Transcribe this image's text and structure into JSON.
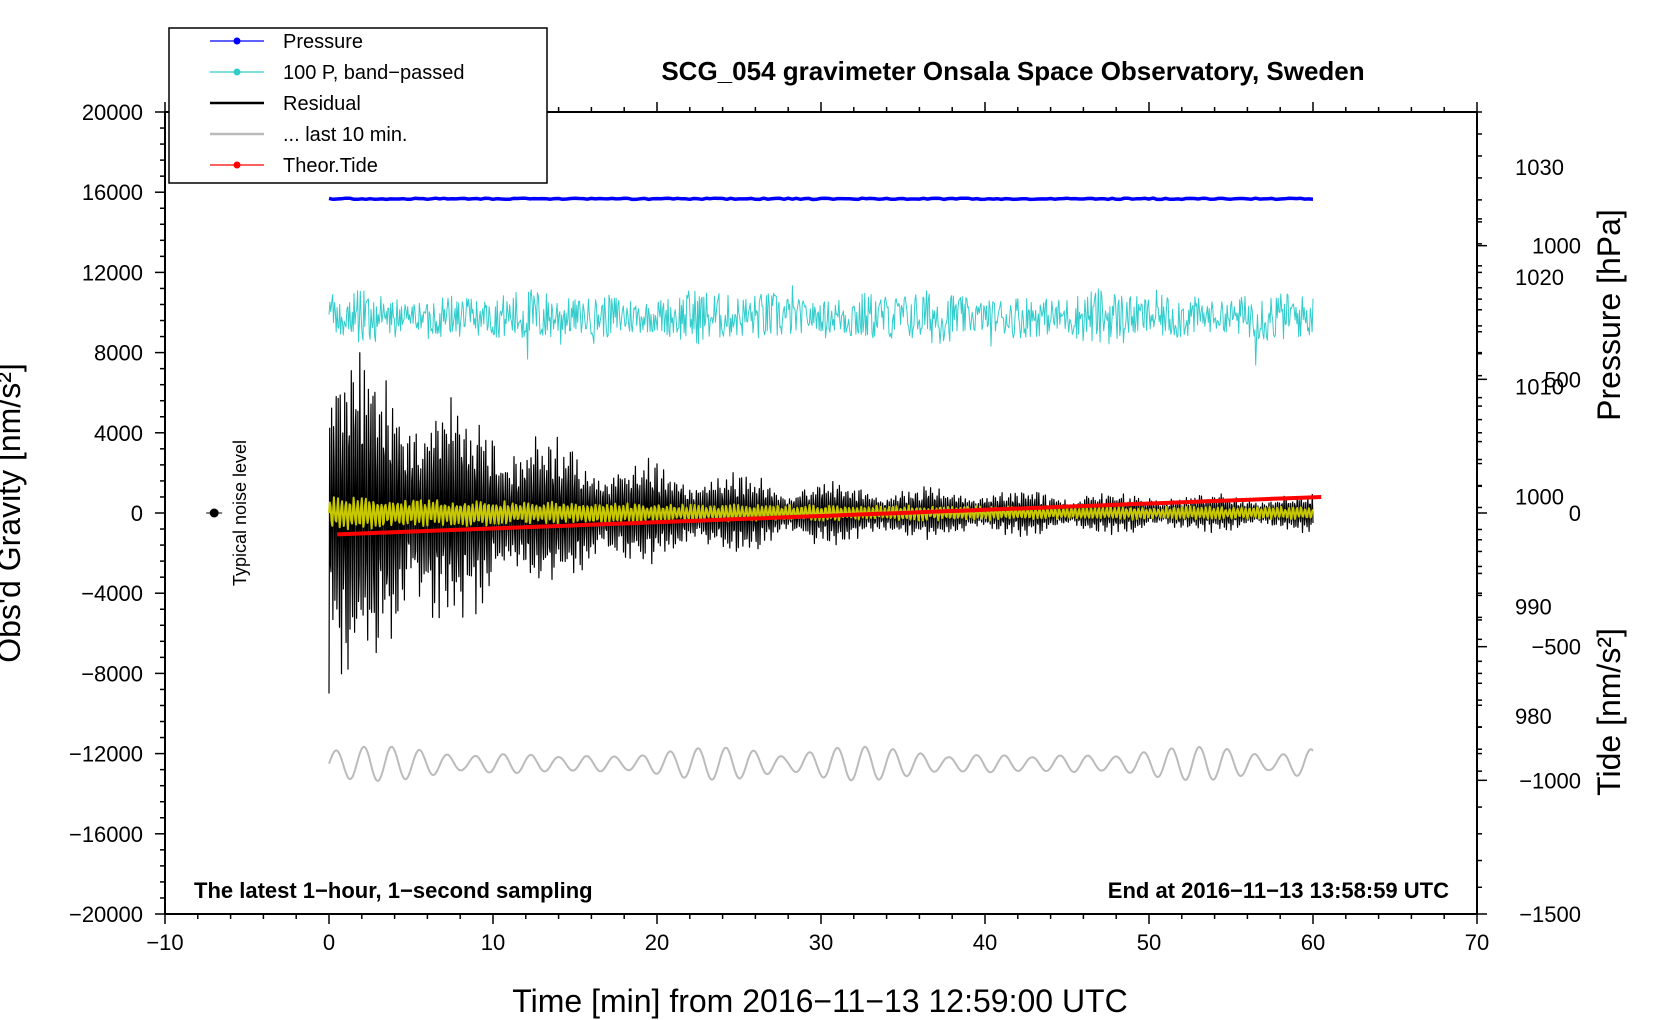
{
  "chart_data": {
    "type": "line",
    "title": "SCG_054 gravimeter Onsala Space Observatory, Sweden",
    "xlabel": "Time [min] from 2016−11−13 12:59:00 UTC",
    "ylabel": "Obs'd Gravity [nm/s²]",
    "ylabel_pressure": "Pressure [hPa]",
    "ylabel_tide": "Tide [nm/s²]",
    "xlim": [
      -10,
      70
    ],
    "ylim": [
      -20000,
      20000
    ],
    "pressure_lim": [
      962,
      1035
    ],
    "tide_lim": [
      -1500,
      1500
    ],
    "x_ticks": [
      "−10",
      "0",
      "10",
      "20",
      "30",
      "40",
      "50",
      "60",
      "70"
    ],
    "y_ticks": [
      "−20000",
      "−16000",
      "−12000",
      "−8000",
      "−4000",
      "0",
      "4000",
      "8000",
      "12000",
      "16000",
      "20000"
    ],
    "pressure_ticks": [
      "980",
      "990",
      "1000",
      "1010",
      "1020",
      "1030"
    ],
    "tide_ticks": [
      "−1500",
      "−1000",
      "−500",
      "0",
      "500",
      "1000"
    ],
    "legend": [
      {
        "label": "Pressure",
        "color": "#0000ff",
        "marker": true
      },
      {
        "label": "100 P, band−passed",
        "color": "#33cccc",
        "marker": true
      },
      {
        "label": "Residual",
        "color": "#000000",
        "marker": false
      },
      {
        "label": "... last 10 min.",
        "color": "#bbbbbb",
        "marker": false
      },
      {
        "label": "Theor.Tide",
        "color": "#ff0000",
        "marker": true
      }
    ],
    "series": [
      {
        "name": "Pressure",
        "axis": "pressure",
        "color": "#0000ff",
        "x_range": [
          0,
          60
        ],
        "approx_value": 1027.1
      },
      {
        "name": "100 P, band−passed",
        "axis": "gravity",
        "color": "#33cccc",
        "x_range": [
          0,
          60
        ],
        "approx_center": 9800,
        "approx_amplitude": 1200
      },
      {
        "name": "Residual",
        "axis": "gravity",
        "color": "#000000",
        "x_range": [
          0,
          60
        ],
        "approx_peak_start": 8000,
        "approx_amplitude_end": 700
      },
      {
        "name": "Residual (smoothed)",
        "axis": "gravity",
        "color": "#c8c800",
        "x_range": [
          0,
          60
        ],
        "approx_amplitude": 800
      },
      {
        "name": "... last 10 min.",
        "axis": "gravity",
        "color": "#bbbbbb",
        "x_range": [
          0,
          60
        ],
        "approx_center": -12500,
        "approx_amplitude": 900
      },
      {
        "name": "Theor.Tide",
        "axis": "tide",
        "color": "#ff0000",
        "x_range": [
          0.5,
          60.5
        ],
        "start_value": -80,
        "end_value": 60
      }
    ],
    "noise_marker": {
      "x": -7,
      "y": 0,
      "label": "Typical noise level"
    },
    "annotations": {
      "bottom_left": "The latest 1−hour, 1−second sampling",
      "bottom_right": "End at 2016−11−13 13:58:59 UTC"
    }
  }
}
